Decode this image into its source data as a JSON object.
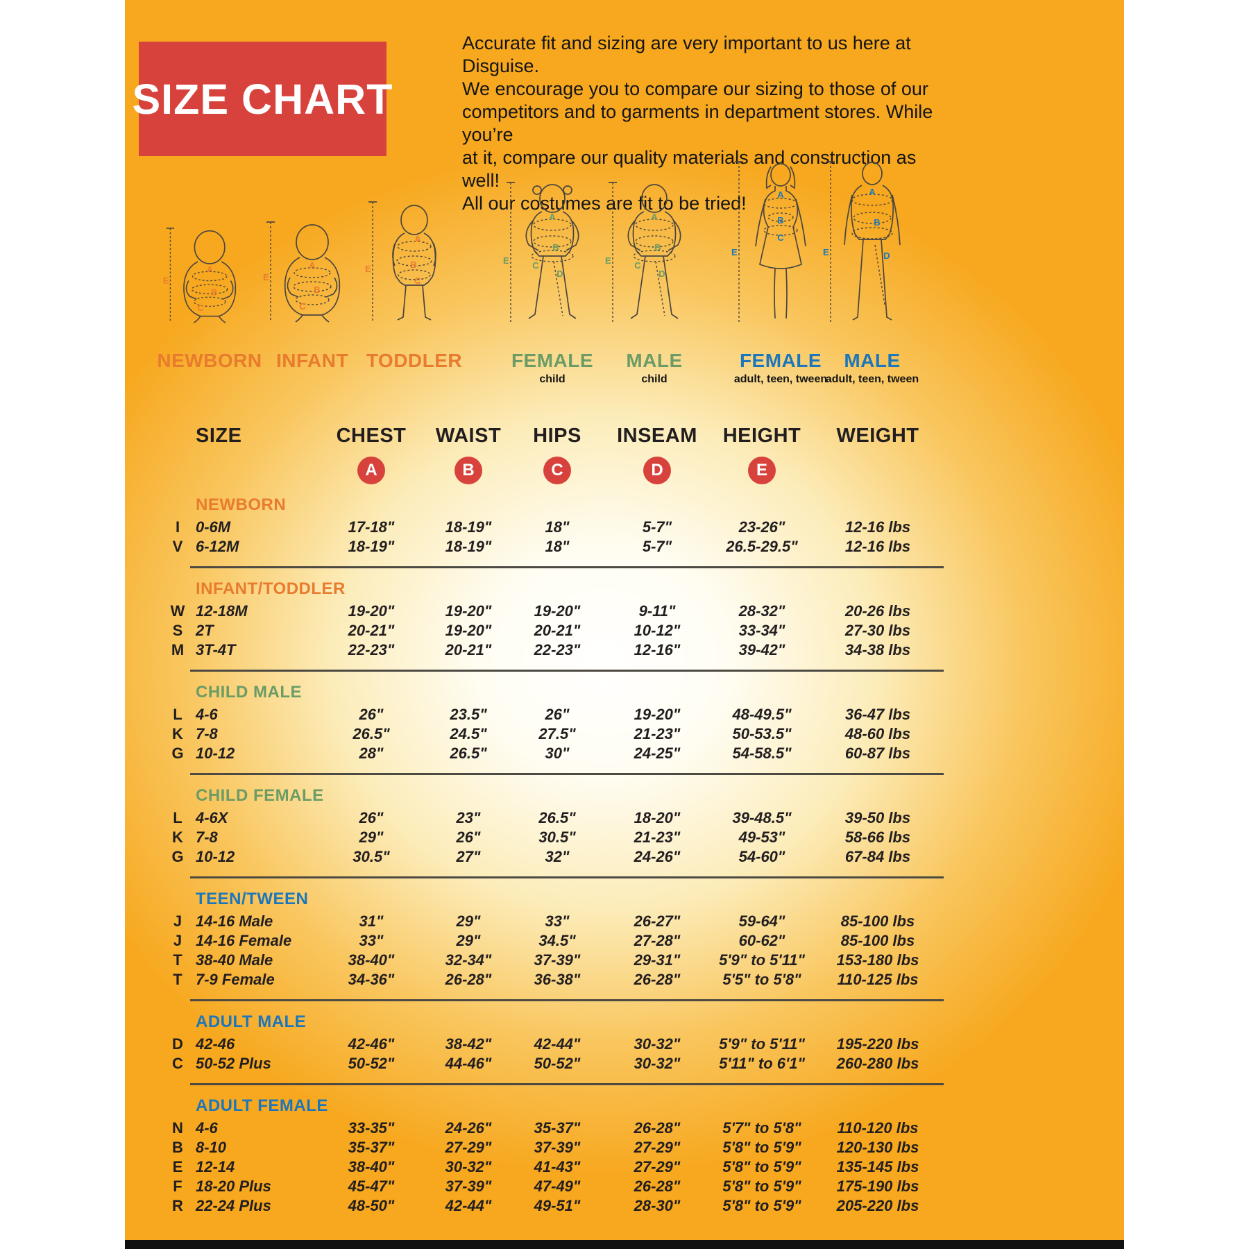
{
  "poster": {
    "title": "SIZE CHART",
    "intro_lines": [
      "Accurate fit and sizing are very important to us here at Disguise.",
      "We encourage you to compare our sizing to those of our",
      "competitors and to garments in department stores. While you’re",
      "at it, compare our quality materials and construction as well!",
      "All our costumes are fit to be tried!"
    ],
    "colors": {
      "background": "#f7a81f",
      "accent_red": "#d8423c",
      "orange": "#e87b2e",
      "green": "#6b9c66",
      "blue": "#1c76bb",
      "text": "#221e1f"
    }
  },
  "figures": [
    {
      "label": "NEWBORN",
      "sublabel": "",
      "color": "#e87b2e",
      "letters": [
        "A",
        "B",
        "C"
      ],
      "height_letter": "E"
    },
    {
      "label": "INFANT",
      "sublabel": "",
      "color": "#e87b2e",
      "letters": [
        "A",
        "B",
        "C"
      ],
      "height_letter": "E"
    },
    {
      "label": "TODDLER",
      "sublabel": "",
      "color": "#e87b2e",
      "letters": [
        "A",
        "B",
        "C"
      ],
      "height_letter": "E"
    },
    {
      "label": "FEMALE",
      "sublabel": "child",
      "color": "#6b9c66",
      "letters": [
        "A",
        "B",
        "C",
        "D"
      ],
      "height_letter": "E"
    },
    {
      "label": "MALE",
      "sublabel": "child",
      "color": "#6b9c66",
      "letters": [
        "A",
        "B",
        "C",
        "D"
      ],
      "height_letter": "E"
    },
    {
      "label": "FEMALE",
      "sublabel": "adult, teen, tween",
      "color": "#1c76bb",
      "letters": [
        "A",
        "B",
        "C"
      ],
      "height_letter": "E"
    },
    {
      "label": "MALE",
      "sublabel": "adult, teen, tween",
      "color": "#1c76bb",
      "letters": [
        "A",
        "B",
        "D"
      ],
      "height_letter": "E"
    }
  ],
  "table": {
    "columns": [
      "SIZE",
      "CHEST",
      "WAIST",
      "HIPS",
      "INSEAM",
      "HEIGHT",
      "WEIGHT"
    ],
    "badge_letters": [
      "A",
      "B",
      "C",
      "D",
      "E"
    ],
    "sections": [
      {
        "name": "NEWBORN",
        "color": "#e87b2e",
        "rows": [
          {
            "code": "I",
            "size": "0-6M",
            "chest": "17-18\"",
            "waist": "18-19\"",
            "hips": "18\"",
            "inseam": "5-7\"",
            "height": "23-26\"",
            "weight": "12-16 lbs"
          },
          {
            "code": "V",
            "size": "6-12M",
            "chest": "18-19\"",
            "waist": "18-19\"",
            "hips": "18\"",
            "inseam": "5-7\"",
            "height": "26.5-29.5\"",
            "weight": "12-16 lbs"
          }
        ]
      },
      {
        "name": "INFANT/TODDLER",
        "color": "#e87b2e",
        "rows": [
          {
            "code": "W",
            "size": "12-18M",
            "chest": "19-20\"",
            "waist": "19-20\"",
            "hips": "19-20\"",
            "inseam": "9-11\"",
            "height": "28-32\"",
            "weight": "20-26 lbs"
          },
          {
            "code": "S",
            "size": "2T",
            "chest": "20-21\"",
            "waist": "19-20\"",
            "hips": "20-21\"",
            "inseam": "10-12\"",
            "height": "33-34\"",
            "weight": "27-30 lbs"
          },
          {
            "code": "M",
            "size": "3T-4T",
            "chest": "22-23\"",
            "waist": "20-21\"",
            "hips": "22-23\"",
            "inseam": "12-16\"",
            "height": "39-42\"",
            "weight": "34-38 lbs"
          }
        ]
      },
      {
        "name": "CHILD MALE",
        "color": "#6b9c66",
        "rows": [
          {
            "code": "L",
            "size": "4-6",
            "chest": "26\"",
            "waist": "23.5\"",
            "hips": "26\"",
            "inseam": "19-20\"",
            "height": "48-49.5\"",
            "weight": "36-47 lbs"
          },
          {
            "code": "K",
            "size": "7-8",
            "chest": "26.5\"",
            "waist": "24.5\"",
            "hips": "27.5\"",
            "inseam": "21-23\"",
            "height": "50-53.5\"",
            "weight": "48-60 lbs"
          },
          {
            "code": "G",
            "size": "10-12",
            "chest": "28\"",
            "waist": "26.5\"",
            "hips": "30\"",
            "inseam": "24-25\"",
            "height": "54-58.5\"",
            "weight": "60-87 lbs"
          }
        ]
      },
      {
        "name": "CHILD FEMALE",
        "color": "#6b9c66",
        "rows": [
          {
            "code": "L",
            "size": "4-6X",
            "chest": "26\"",
            "waist": "23\"",
            "hips": "26.5\"",
            "inseam": "18-20\"",
            "height": "39-48.5\"",
            "weight": "39-50 lbs"
          },
          {
            "code": "K",
            "size": "7-8",
            "chest": "29\"",
            "waist": "26\"",
            "hips": "30.5\"",
            "inseam": "21-23\"",
            "height": "49-53\"",
            "weight": "58-66 lbs"
          },
          {
            "code": "G",
            "size": "10-12",
            "chest": "30.5\"",
            "waist": "27\"",
            "hips": "32\"",
            "inseam": "24-26\"",
            "height": "54-60\"",
            "weight": "67-84 lbs"
          }
        ]
      },
      {
        "name": "TEEN/TWEEN",
        "color": "#1c76bb",
        "rows": [
          {
            "code": "J",
            "size": "14-16 Male",
            "chest": "31\"",
            "waist": "29\"",
            "hips": "33\"",
            "inseam": "26-27\"",
            "height": "59-64\"",
            "weight": "85-100 lbs"
          },
          {
            "code": "J",
            "size": "14-16 Female",
            "chest": "33\"",
            "waist": "29\"",
            "hips": "34.5\"",
            "inseam": "27-28\"",
            "height": "60-62\"",
            "weight": "85-100 lbs"
          },
          {
            "code": "T",
            "size": "38-40 Male",
            "chest": "38-40\"",
            "waist": "32-34\"",
            "hips": "37-39\"",
            "inseam": "29-31\"",
            "height": "5'9\" to 5'11\"",
            "weight": "153-180 lbs"
          },
          {
            "code": "T",
            "size": "7-9 Female",
            "chest": "34-36\"",
            "waist": "26-28\"",
            "hips": "36-38\"",
            "inseam": "26-28\"",
            "height": "5'5\" to 5'8\"",
            "weight": "110-125 lbs"
          }
        ]
      },
      {
        "name": "ADULT MALE",
        "color": "#1c76bb",
        "rows": [
          {
            "code": "D",
            "size": "42-46",
            "chest": "42-46\"",
            "waist": "38-42\"",
            "hips": "42-44\"",
            "inseam": "30-32\"",
            "height": "5'9\" to 5'11\"",
            "weight": "195-220 lbs"
          },
          {
            "code": "C",
            "size": "50-52 Plus",
            "chest": "50-52\"",
            "waist": "44-46\"",
            "hips": "50-52\"",
            "inseam": "30-32\"",
            "height": "5'11\" to 6'1\"",
            "weight": "260-280 lbs"
          }
        ]
      },
      {
        "name": "ADULT FEMALE",
        "color": "#1c76bb",
        "rows": [
          {
            "code": "N",
            "size": "4-6",
            "chest": "33-35\"",
            "waist": "24-26\"",
            "hips": "35-37\"",
            "inseam": "26-28\"",
            "height": "5'7\" to 5'8\"",
            "weight": "110-120 lbs"
          },
          {
            "code": "B",
            "size": "8-10",
            "chest": "35-37\"",
            "waist": "27-29\"",
            "hips": "37-39\"",
            "inseam": "27-29\"",
            "height": "5'8\" to 5'9\"",
            "weight": "120-130 lbs"
          },
          {
            "code": "E",
            "size": "12-14",
            "chest": "38-40\"",
            "waist": "30-32\"",
            "hips": "41-43\"",
            "inseam": "27-29\"",
            "height": "5'8\" to 5'9\"",
            "weight": "135-145 lbs"
          },
          {
            "code": "F",
            "size": "18-20 Plus",
            "chest": "45-47\"",
            "waist": "37-39\"",
            "hips": "47-49\"",
            "inseam": "26-28\"",
            "height": "5'8\" to 5'9\"",
            "weight": "175-190 lbs"
          },
          {
            "code": "R",
            "size": "22-24 Plus",
            "chest": "48-50\"",
            "waist": "42-44\"",
            "hips": "49-51\"",
            "inseam": "28-30\"",
            "height": "5'8\" to 5'9\"",
            "weight": "205-220 lbs"
          }
        ]
      }
    ]
  }
}
